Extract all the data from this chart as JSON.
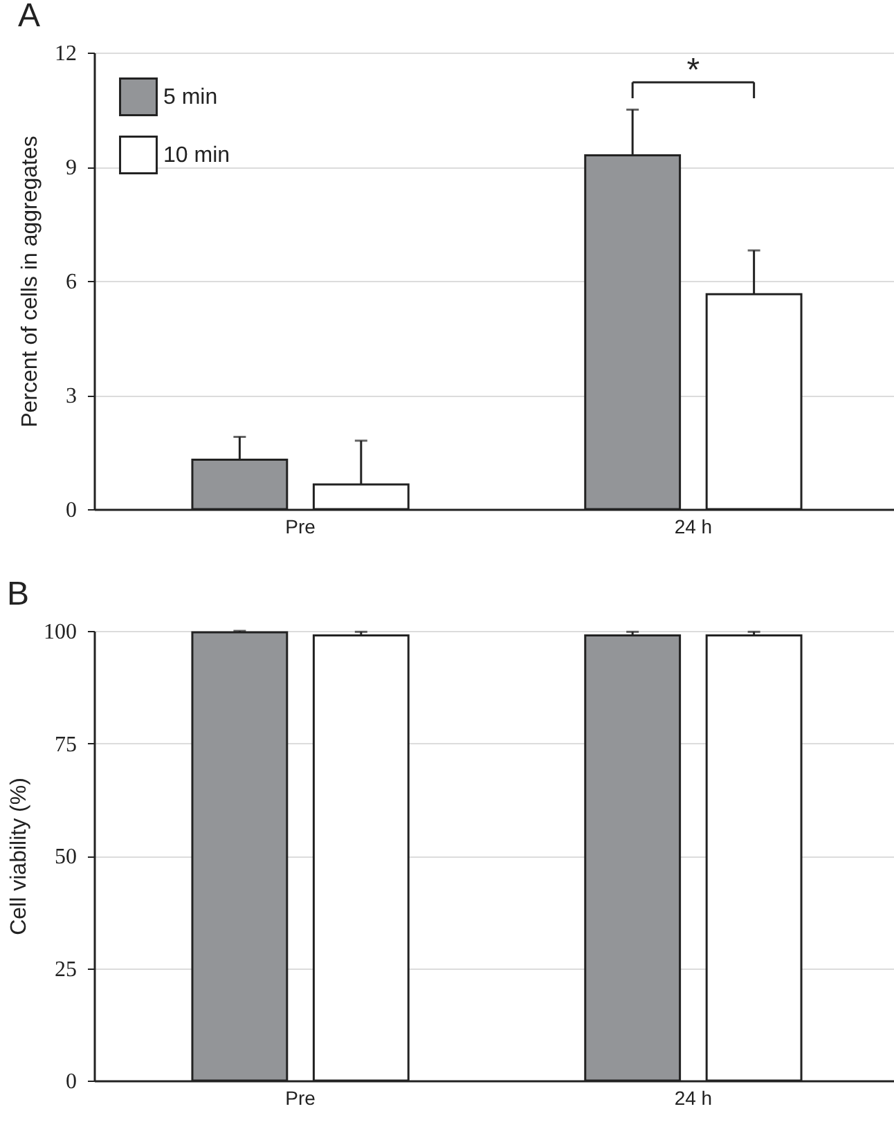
{
  "chart_data": [
    {
      "type": "bar",
      "title": "A",
      "ylabel": "Percent of cells in aggregates",
      "categories": [
        "Pre",
        "24 h"
      ],
      "ylim": [
        0,
        12
      ],
      "yticks": [
        0,
        3,
        6,
        9,
        12
      ],
      "grid": "y",
      "legend": "top left",
      "series": [
        {
          "name": "5 min",
          "color": "#939598",
          "values": [
            1.3,
            9.3
          ],
          "errors": [
            [
              1.3,
              1.9
            ],
            [
              9.3,
              10.5
            ]
          ]
        },
        {
          "name": "10 min",
          "color": "#ffffff",
          "values": [
            0.65,
            5.65
          ],
          "errors": [
            [
              0.65,
              1.8
            ],
            [
              5.65,
              6.8
            ]
          ]
        }
      ],
      "annotations": [
        "*"
      ]
    },
    {
      "type": "bar",
      "title": "B",
      "ylabel": "Cell viability (%)",
      "categories": [
        "Pre",
        "24 h"
      ],
      "ylim": [
        0,
        100
      ],
      "yticks": [
        0,
        25,
        50,
        75,
        100
      ],
      "grid": "y",
      "series": [
        {
          "color": "#939598",
          "values": [
            99.7,
            99
          ],
          "errors": [
            0.3,
            0.8
          ]
        },
        {
          "color": "#ffffff",
          "values": [
            99,
            99
          ],
          "errors": [
            0.8,
            0.8
          ]
        }
      ]
    }
  ]
}
